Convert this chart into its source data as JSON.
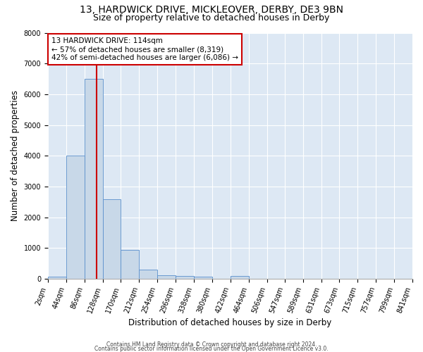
{
  "title1": "13, HARDWICK DRIVE, MICKLEOVER, DERBY, DE3 9BN",
  "title2": "Size of property relative to detached houses in Derby",
  "xlabel": "Distribution of detached houses by size in Derby",
  "ylabel": "Number of detached properties",
  "annotation_line1": "13 HARDWICK DRIVE: 114sqm",
  "annotation_line2": "← 57% of detached houses are smaller (8,319)",
  "annotation_line3": "42% of semi-detached houses are larger (6,086) →",
  "bins": [
    2,
    44,
    86,
    128,
    170,
    212,
    254,
    296,
    338,
    380,
    422,
    464,
    506,
    547,
    589,
    631,
    673,
    715,
    757,
    799,
    841
  ],
  "counts": [
    70,
    4000,
    6500,
    2600,
    950,
    300,
    120,
    100,
    80,
    0,
    100,
    0,
    0,
    0,
    0,
    0,
    0,
    0,
    0,
    0
  ],
  "bar_color": "#c8d8e8",
  "bar_edge_color": "#5a8fcc",
  "vline_color": "#cc0000",
  "vline_x": 114,
  "annotation_box_color": "#cc0000",
  "background_color": "#dde8f4",
  "ylim": [
    0,
    8000
  ],
  "yticks": [
    0,
    1000,
    2000,
    3000,
    4000,
    5000,
    6000,
    7000,
    8000
  ],
  "footer_line1": "Contains HM Land Registry data © Crown copyright and database right 2024.",
  "footer_line2": "Contains public sector information licensed under the Open Government Licence v3.0.",
  "title1_fontsize": 10,
  "title2_fontsize": 9,
  "xlabel_fontsize": 8.5,
  "ylabel_fontsize": 8.5,
  "tick_fontsize": 7,
  "annotation_fontsize": 7.5
}
